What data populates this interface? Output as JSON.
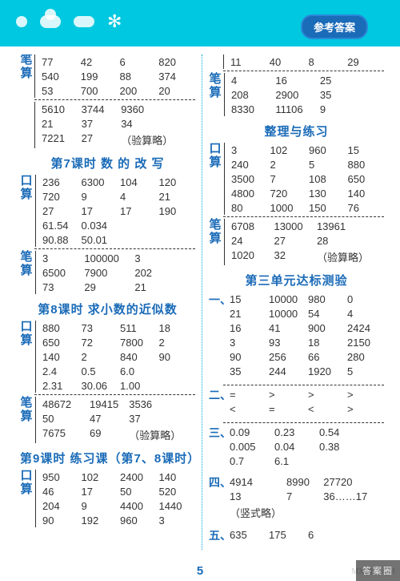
{
  "header": {
    "badge": "参考答案"
  },
  "page_number": "5",
  "watermark": "MXQE.COM",
  "corner_text": "答案圈",
  "left": {
    "block1": {
      "kou_rows": [
        [
          "77",
          "42",
          "6",
          "820"
        ],
        [
          "540",
          "199",
          "88",
          "374"
        ],
        [
          "53",
          "700",
          "200",
          "20"
        ]
      ],
      "bi_rows": [
        [
          "5610",
          "3744",
          "9360",
          ""
        ],
        [
          "21",
          "37",
          "34",
          ""
        ],
        [
          "7221",
          "27",
          "（验算略）",
          ""
        ]
      ]
    },
    "title2": "第7课时  数 的 改 写",
    "block2": {
      "kou_rows": [
        [
          "236",
          "6300",
          "104",
          "120"
        ],
        [
          "720",
          "9",
          "4",
          "21"
        ],
        [
          "27",
          "17",
          "17",
          "190"
        ],
        [
          "61.54",
          "0.034",
          "",
          ""
        ],
        [
          "90.88",
          "50.01",
          "",
          ""
        ]
      ],
      "bi_rows": [
        [
          "3",
          "100000",
          "3",
          ""
        ],
        [
          "6500",
          "7900",
          "202",
          ""
        ],
        [
          "73",
          "29",
          "21",
          ""
        ]
      ]
    },
    "title3": "第8课时  求小数的近似数",
    "block3": {
      "kou_rows": [
        [
          "880",
          "73",
          "511",
          "18"
        ],
        [
          "650",
          "72",
          "7800",
          "2"
        ],
        [
          "140",
          "2",
          "840",
          "90"
        ],
        [
          "2.4",
          "0.5",
          "6.0",
          ""
        ],
        [
          "2.31",
          "30.06",
          "1.00",
          ""
        ]
      ],
      "bi_rows": [
        [
          "48672",
          "19415",
          "3536",
          ""
        ],
        [
          "50",
          "47",
          "37",
          ""
        ],
        [
          "7675",
          "69",
          "（验算略）",
          ""
        ]
      ]
    },
    "title4": "第9课时  练习课（第7、8课时）",
    "block4": {
      "kou_rows": [
        [
          "950",
          "102",
          "2400",
          "140"
        ],
        [
          "46",
          "17",
          "50",
          "520"
        ],
        [
          "204",
          "9",
          "4400",
          "1440"
        ],
        [
          "90",
          "192",
          "960",
          "3"
        ]
      ]
    }
  },
  "right": {
    "block1": {
      "top_rows": [
        [
          "11",
          "40",
          "8",
          "29"
        ]
      ],
      "bi_rows": [
        [
          "4",
          "16",
          "25",
          ""
        ],
        [
          "208",
          "2900",
          "35",
          ""
        ],
        [
          "8330",
          "11106",
          "9",
          ""
        ]
      ]
    },
    "title2": "整理与练习",
    "block2": {
      "kou_rows": [
        [
          "3",
          "102",
          "960",
          "15"
        ],
        [
          "240",
          "2",
          "5",
          "880"
        ],
        [
          "3500",
          "7",
          "108",
          "650"
        ],
        [
          "4800",
          "720",
          "130",
          "140"
        ],
        [
          "80",
          "1000",
          "150",
          "76"
        ]
      ],
      "bi_rows": [
        [
          "6708",
          "13000",
          "13961",
          ""
        ],
        [
          "24",
          "27",
          "28",
          ""
        ],
        [
          "1020",
          "32",
          "（验算略）",
          ""
        ]
      ]
    },
    "title3": "第三单元达标测验",
    "sec1_label": "一、",
    "sec1_rows": [
      [
        "15",
        "10000",
        "980",
        "0"
      ],
      [
        "21",
        "10000",
        "54",
        "4"
      ],
      [
        "16",
        "41",
        "900",
        "2424"
      ],
      [
        "3",
        "93",
        "18",
        "2150"
      ],
      [
        "90",
        "256",
        "66",
        "280"
      ],
      [
        "35",
        "244",
        "1920",
        "5"
      ]
    ],
    "sec2_label": "二、",
    "sec2_rows": [
      [
        "=",
        ">",
        ">",
        ">"
      ],
      [
        "<",
        "=",
        "<",
        ">"
      ]
    ],
    "sec3_label": "三、",
    "sec3_rows": [
      [
        "0.09",
        "0.23",
        "0.54",
        ""
      ],
      [
        "0.005",
        "0.04",
        "0.38",
        ""
      ],
      [
        "0.7",
        "6.1",
        "",
        ""
      ]
    ],
    "sec4_label": "四、",
    "sec4_rows": [
      [
        "4914",
        "8990",
        "27720",
        ""
      ],
      [
        "13",
        "7",
        "36……17",
        ""
      ],
      [
        "（竖式略）",
        "",
        "",
        ""
      ]
    ],
    "sec5_label": "五、",
    "sec5_rows": [
      [
        "635",
        "175",
        "6",
        ""
      ]
    ]
  },
  "style": {
    "header_bg": "#00c8e0",
    "accent": "#1a6bb8",
    "divider": "#00a8d8",
    "text": "#333333",
    "font_size_cell": 13,
    "font_size_title": 15
  }
}
